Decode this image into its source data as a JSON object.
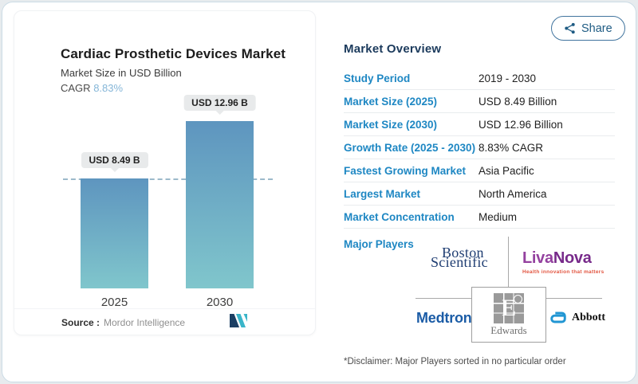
{
  "header": {
    "share_label": "Share"
  },
  "chart_card": {
    "title": "Cardiac Prosthetic Devices Market",
    "subtitle": "Market Size in USD Billion",
    "cagr_label": "CAGR",
    "cagr_value": "8.83%",
    "source_label": "Source :",
    "source_name": "Mordor Intelligence"
  },
  "chart_data": {
    "type": "bar",
    "title": "Cardiac Prosthetic Devices Market",
    "ylabel": "Market Size in USD Billion",
    "categories": [
      "2025",
      "2030"
    ],
    "values": [
      8.49,
      12.96
    ],
    "value_labels": [
      "USD 8.49 B",
      "USD 12.96 B"
    ],
    "unit": "USD Billion",
    "cagr": "8.83%",
    "ylim": [
      0,
      12.96
    ],
    "grid": false,
    "reference_line": {
      "at_value": 8.49,
      "style": "dashed",
      "color": "#9cb9cb"
    },
    "bar_gradient_top": "#5e95bf",
    "bar_gradient_bottom": "#80c6cc"
  },
  "overview": {
    "heading": "Market Overview",
    "rows": [
      {
        "label": "Study Period",
        "value": "2019 - 2030"
      },
      {
        "label": "Market Size (2025)",
        "value": "USD 8.49 Billion"
      },
      {
        "label": "Market Size (2030)",
        "value": "USD 12.96 Billion"
      },
      {
        "label": "Growth Rate (2025 - 2030)",
        "value": "8.83% CAGR"
      },
      {
        "label": "Fastest Growing Market",
        "value": "Asia Pacific"
      },
      {
        "label": "Largest Market",
        "value": "North America"
      },
      {
        "label": "Market Concentration",
        "value": "Medium"
      }
    ],
    "major_players_label": "Major Players",
    "players": {
      "boston_scientific_line1": "Boston",
      "boston_scientific_line2": "Scientific",
      "livanova_part1": "Liva",
      "livanova_part2": "Nova",
      "livanova_tagline": "Health innovation that matters",
      "medtronic": "Medtronic",
      "edwards_initial": "E",
      "edwards": "Edwards",
      "abbott": "Abbott"
    },
    "disclaimer": "*Disclaimer: Major Players sorted in no particular order"
  },
  "colors": {
    "accent_label_blue": "#1e87c3",
    "heading_navy": "#1b3a5c",
    "cagr_blue": "#85b6d8",
    "share_border": "#41749e",
    "badge_bg": "#e8eaeb"
  }
}
